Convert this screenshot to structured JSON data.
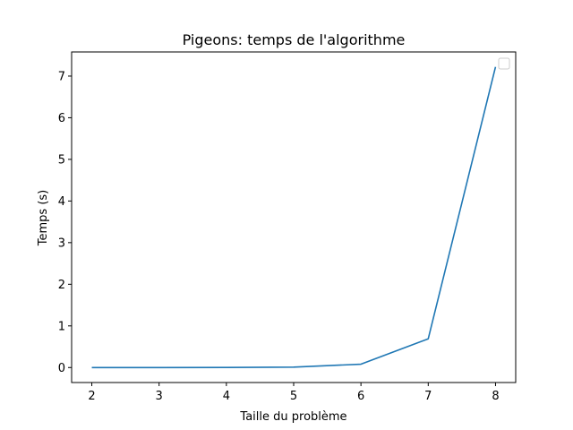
{
  "chart_data": {
    "type": "line",
    "title": "Pigeons: temps de l'algorithme",
    "xlabel": "Taille du problème",
    "ylabel": "Temps (s)",
    "x": [
      2,
      3,
      4,
      5,
      6,
      7,
      8
    ],
    "series": [
      {
        "values": [
          0.0,
          0.0,
          0.001,
          0.01,
          0.08,
          0.69,
          7.22
        ],
        "color": "#1f77b4"
      }
    ],
    "xlim": [
      1.7,
      8.3
    ],
    "ylim": [
      -0.36,
      7.58
    ],
    "xticks": [
      2,
      3,
      4,
      5,
      6,
      7,
      8
    ],
    "yticks": [
      0,
      1,
      2,
      3,
      4,
      5,
      6,
      7
    ],
    "grid": false,
    "legend": "upper-right",
    "legend_entries": []
  }
}
